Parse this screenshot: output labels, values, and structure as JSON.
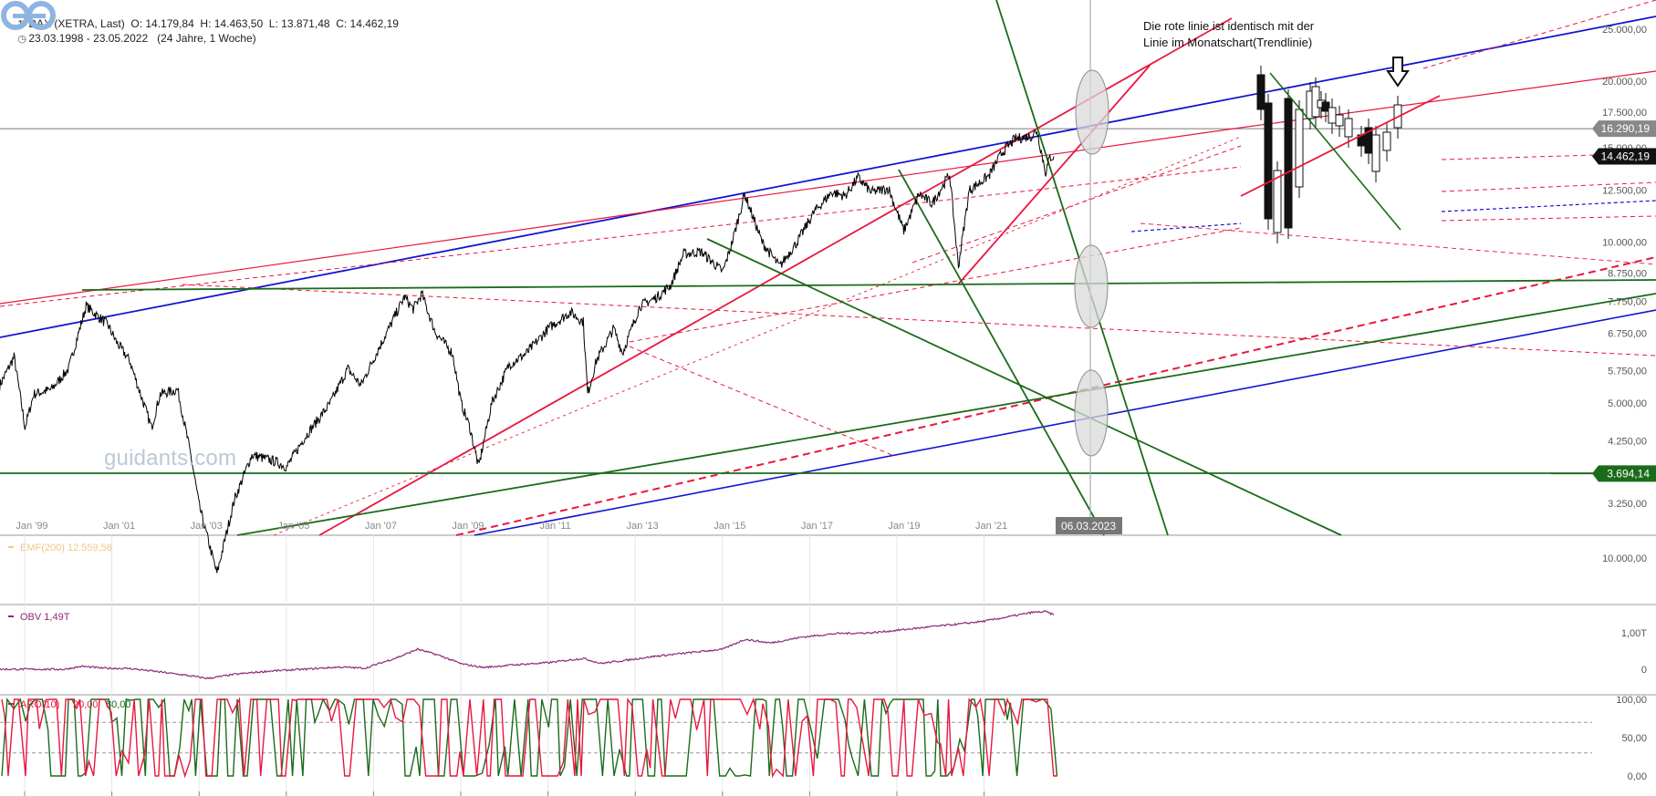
{
  "header": {
    "line1": "DAX (XETRA, Last)  O: 14.179,84  H: 14.463,50  L: 13.871,48  C: 14.462,19",
    "line2": "23.03.1998 - 23.05.2022   (24 Jahre, 1 Woche)",
    "icon1": "chart-icon",
    "icon2": "clock-icon"
  },
  "annotation": {
    "line1": "Die rote linie ist identisch mit der",
    "line2": "Linie im Monatschart(Trendlinie)"
  },
  "branding": {
    "logo_text": "guidants.com",
    "logo_icon": "guidants-logo-icon",
    "logo_color": "#8fb4e0"
  },
  "colors": {
    "price": "#000000",
    "red": "#e8173f",
    "green": "#1a6b1a",
    "blue": "#1414d2",
    "obv": "#8a2a7a",
    "ema": "#f0c78a",
    "aro_up": "#e8173f",
    "aro_down": "#1a6b1a",
    "grid": "#e6e6e6"
  },
  "chart_data": [
    {
      "type": "line",
      "title": "DAX (XETRA, Last)",
      "ohlc": {
        "open": "14.179,84",
        "high": "14.463,50",
        "low": "13.871,48",
        "close": "14.462,19"
      },
      "date_range": "23.03.1998 - 23.05.2022",
      "scale": "log",
      "ylim": [
        3000,
        27000
      ],
      "y_ticks": [
        {
          "value": 25000,
          "label": "25.000,00"
        },
        {
          "value": 20000,
          "label": "20.000,00"
        },
        {
          "value": 17500,
          "label": "17.500,00"
        },
        {
          "value": 15000,
          "label": "15.000,00"
        },
        {
          "value": 12500,
          "label": "12.500,00"
        },
        {
          "value": 10000,
          "label": "10.000,00"
        },
        {
          "value": 8750,
          "label": "8.750,00"
        },
        {
          "value": 7750,
          "label": "7.750,00"
        },
        {
          "value": 6750,
          "label": "6.750,00"
        },
        {
          "value": 5750,
          "label": "5.750,00"
        },
        {
          "value": 5000,
          "label": "5.000,00"
        },
        {
          "value": 4250,
          "label": "4.250,00"
        },
        {
          "value": 3250,
          "label": "3.250,00"
        }
      ],
      "x_ticks": [
        {
          "year": 1999,
          "label": "Jan '99"
        },
        {
          "year": 2001,
          "label": "Jan '01"
        },
        {
          "year": 2003,
          "label": "Jan '03"
        },
        {
          "year": 2005,
          "label": "Jan '05"
        },
        {
          "year": 2007,
          "label": "Jan '07"
        },
        {
          "year": 2009,
          "label": "Jan '09"
        },
        {
          "year": 2011,
          "label": "Jan '11"
        },
        {
          "year": 2013,
          "label": "Jan '13"
        },
        {
          "year": 2015,
          "label": "Jan '15"
        },
        {
          "year": 2017,
          "label": "Jan '17"
        },
        {
          "year": 2019,
          "label": "Jan '19"
        },
        {
          "year": 2021,
          "label": "Jan '21"
        }
      ],
      "crosshair_date": "06.03.2023",
      "price_tags": [
        {
          "value": 16290.19,
          "label": "16.290,19",
          "style": "gray"
        },
        {
          "value": 14462.19,
          "label": "14.462,19",
          "style": "black"
        },
        {
          "value": 3694.14,
          "label": "3.694,14",
          "style": "green"
        }
      ],
      "series": [
        {
          "points": [
            [
              1998.22,
              5400
            ],
            [
              1998.55,
              6100
            ],
            [
              1998.8,
              4500
            ],
            [
              1999.0,
              5200
            ],
            [
              1999.4,
              5300
            ],
            [
              1999.8,
              5800
            ],
            [
              2000.2,
              7600
            ],
            [
              2000.7,
              7000
            ],
            [
              2000.9,
              6500
            ],
            [
              2001.2,
              6000
            ],
            [
              2001.7,
              4500
            ],
            [
              2001.9,
              5200
            ],
            [
              2002.3,
              5300
            ],
            [
              2002.6,
              4000
            ],
            [
              2002.8,
              3200
            ],
            [
              2003.2,
              2400
            ],
            [
              2003.6,
              3300
            ],
            [
              2004.0,
              4000
            ],
            [
              2004.5,
              3900
            ],
            [
              2004.8,
              3800
            ],
            [
              2005.2,
              4300
            ],
            [
              2005.8,
              5000
            ],
            [
              2006.2,
              5800
            ],
            [
              2006.5,
              5400
            ],
            [
              2006.9,
              6300
            ],
            [
              2007.5,
              7900
            ],
            [
              2007.7,
              7500
            ],
            [
              2007.9,
              8000
            ],
            [
              2008.2,
              6800
            ],
            [
              2008.6,
              6200
            ],
            [
              2008.8,
              5000
            ],
            [
              2009.0,
              4500
            ],
            [
              2009.2,
              3800
            ],
            [
              2009.5,
              5000
            ],
            [
              2009.9,
              5900
            ],
            [
              2010.3,
              6200
            ],
            [
              2010.8,
              6900
            ],
            [
              2011.3,
              7400
            ],
            [
              2011.6,
              7100
            ],
            [
              2011.7,
              5200
            ],
            [
              2011.9,
              6000
            ],
            [
              2012.3,
              6900
            ],
            [
              2012.5,
              6200
            ],
            [
              2012.9,
              7600
            ],
            [
              2013.3,
              7900
            ],
            [
              2013.6,
              8300
            ],
            [
              2013.9,
              9500
            ],
            [
              2014.3,
              9600
            ],
            [
              2014.8,
              8800
            ],
            [
              2015.0,
              9900
            ],
            [
              2015.3,
              12300
            ],
            [
              2015.7,
              10000
            ],
            [
              2016.1,
              9000
            ],
            [
              2016.5,
              10000
            ],
            [
              2016.9,
              11400
            ],
            [
              2017.3,
              12400
            ],
            [
              2017.6,
              12200
            ],
            [
              2017.9,
              13200
            ],
            [
              2018.2,
              12400
            ],
            [
              2018.6,
              12600
            ],
            [
              2018.95,
              10500
            ],
            [
              2019.3,
              12300
            ],
            [
              2019.6,
              11800
            ],
            [
              2020.0,
              13400
            ],
            [
              2020.2,
              9000
            ],
            [
              2020.45,
              12500
            ],
            [
              2020.9,
              13300
            ],
            [
              2021.2,
              14700
            ],
            [
              2021.5,
              15600
            ],
            [
              2021.9,
              15800
            ],
            [
              2022.0,
              16200
            ],
            [
              2022.2,
              13500
            ],
            [
              2022.3,
              14400
            ],
            [
              2022.39,
              14462
            ]
          ]
        }
      ]
    },
    {
      "type": "line",
      "name": "EMF(200)",
      "label": "EMF(200)  12.559,56",
      "y_ticks": [
        {
          "value": 10000,
          "label": "10.000,00"
        }
      ]
    },
    {
      "type": "line",
      "name": "OBV",
      "label": "OBV  1,49T",
      "y_ticks": [
        {
          "value": 1.0,
          "label": "1,00T"
        },
        {
          "value": 0,
          "label": "0"
        }
      ],
      "series": [
        {
          "points": [
            [
              1998.2,
              0.0
            ],
            [
              1999.0,
              0.0
            ],
            [
              1999.7,
              0.0
            ],
            [
              2000.1,
              0.08
            ],
            [
              2000.6,
              0.03
            ],
            [
              2001.2,
              0.02
            ],
            [
              2001.8,
              -0.06
            ],
            [
              2002.4,
              -0.15
            ],
            [
              2003.0,
              -0.25
            ],
            [
              2003.6,
              -0.14
            ],
            [
              2004.4,
              -0.05
            ],
            [
              2005.2,
              0.0
            ],
            [
              2006.0,
              0.06
            ],
            [
              2006.6,
              0.03
            ],
            [
              2007.4,
              0.35
            ],
            [
              2007.8,
              0.55
            ],
            [
              2008.3,
              0.38
            ],
            [
              2008.8,
              0.15
            ],
            [
              2009.3,
              0.05
            ],
            [
              2010.0,
              0.12
            ],
            [
              2010.8,
              0.18
            ],
            [
              2011.6,
              0.3
            ],
            [
              2012.0,
              0.16
            ],
            [
              2012.6,
              0.25
            ],
            [
              2013.2,
              0.35
            ],
            [
              2014.0,
              0.45
            ],
            [
              2014.8,
              0.55
            ],
            [
              2015.3,
              0.82
            ],
            [
              2015.9,
              0.72
            ],
            [
              2016.6,
              0.88
            ],
            [
              2017.4,
              0.98
            ],
            [
              2018.2,
              1.0
            ],
            [
              2018.9,
              1.08
            ],
            [
              2019.6,
              1.17
            ],
            [
              2020.3,
              1.25
            ],
            [
              2020.8,
              1.32
            ],
            [
              2021.4,
              1.45
            ],
            [
              2021.9,
              1.56
            ],
            [
              2022.2,
              1.58
            ],
            [
              2022.39,
              1.49
            ]
          ]
        }
      ]
    },
    {
      "type": "line",
      "name": "ARO(10)",
      "label_name": "ARO(10)",
      "label_up": "20,00",
      "label_down": "80,00",
      "ylim": [
        0,
        100
      ],
      "y_ticks": [
        {
          "value": 100,
          "label": "100,00"
        },
        {
          "value": 50,
          "label": "50,00"
        },
        {
          "value": 0,
          "label": "0,00"
        }
      ],
      "dashed_levels": [
        70,
        30
      ]
    }
  ]
}
